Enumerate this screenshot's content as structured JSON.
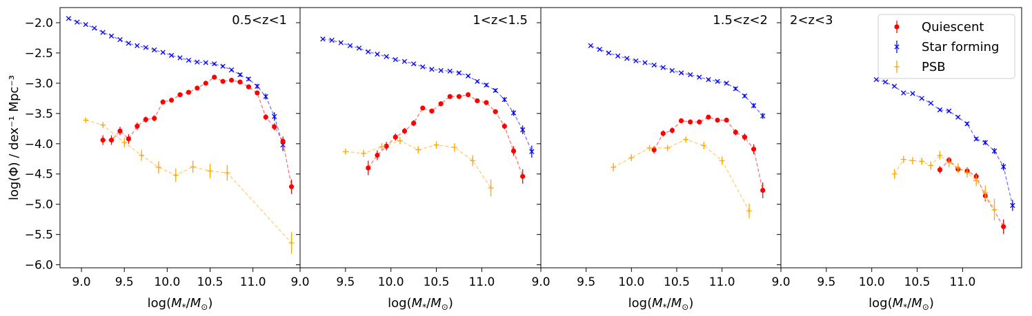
{
  "chart_data": {
    "type": "scatter",
    "ylabel": "log(Φ) / dex⁻¹ Mpc⁻³",
    "xlabel": "log(M*/M⊙)",
    "ylim": [
      -6.05,
      -1.75
    ],
    "yticks": [
      "−2.0",
      "−2.5",
      "−3.0",
      "−3.5",
      "−4.0",
      "−4.5",
      "−5.0",
      "−5.5",
      "−6.0"
    ],
    "ytick_values": [
      -2.0,
      -2.5,
      -3.0,
      -3.5,
      -4.0,
      -4.5,
      -5.0,
      -5.5,
      -6.0
    ],
    "legend": {
      "placement": "top-right",
      "entries": [
        {
          "label": "Quiescent",
          "color": "#ff0000",
          "marker": "circle"
        },
        {
          "label": "Star forming",
          "color": "#0000ff",
          "marker": "x"
        },
        {
          "label": "PSB",
          "color": "#ffa500",
          "marker": "plus"
        }
      ]
    },
    "panels": [
      {
        "title": "0.5<z<1",
        "xlim": [
          8.75,
          11.55
        ],
        "xticks": [
          "9.0",
          "9.5",
          "10.0",
          "10.5",
          "11.0"
        ],
        "xtick_values": [
          9.0,
          9.5,
          10.0,
          10.5,
          11.0
        ],
        "series": [
          {
            "name": "Star forming",
            "color": "#0000ff",
            "marker": "x",
            "x": [
              8.85,
              8.95,
              9.05,
              9.15,
              9.25,
              9.35,
              9.45,
              9.55,
              9.65,
              9.75,
              9.85,
              9.95,
              10.05,
              10.15,
              10.25,
              10.35,
              10.45,
              10.55,
              10.65,
              10.75,
              10.85,
              10.95,
              11.05,
              11.15,
              11.25,
              11.35
            ],
            "y": [
              -1.93,
              -1.99,
              -2.03,
              -2.09,
              -2.16,
              -2.22,
              -2.28,
              -2.34,
              -2.38,
              -2.41,
              -2.45,
              -2.49,
              -2.54,
              -2.58,
              -2.62,
              -2.65,
              -2.66,
              -2.68,
              -2.72,
              -2.78,
              -2.86,
              -2.93,
              -3.05,
              -3.22,
              -3.55,
              -4.02
            ],
            "err": [
              0.01,
              0.01,
              0.01,
              0.01,
              0.01,
              0.01,
              0.01,
              0.01,
              0.01,
              0.01,
              0.01,
              0.01,
              0.01,
              0.01,
              0.01,
              0.01,
              0.01,
              0.02,
              0.02,
              0.02,
              0.03,
              0.03,
              0.04,
              0.05,
              0.07,
              0.1
            ]
          },
          {
            "name": "Quiescent",
            "color": "#ff0000",
            "marker": "circle",
            "x": [
              9.25,
              9.35,
              9.45,
              9.55,
              9.65,
              9.75,
              9.85,
              9.95,
              10.05,
              10.15,
              10.25,
              10.35,
              10.45,
              10.55,
              10.65,
              10.75,
              10.85,
              10.95,
              11.05,
              11.15,
              11.25,
              11.35,
              11.45
            ],
            "y": [
              -3.94,
              -3.94,
              -3.79,
              -3.92,
              -3.71,
              -3.6,
              -3.58,
              -3.31,
              -3.28,
              -3.19,
              -3.15,
              -3.08,
              -3.0,
              -2.9,
              -2.97,
              -2.95,
              -2.98,
              -3.06,
              -3.16,
              -3.56,
              -3.72,
              -3.96,
              -4.71
            ],
            "err": [
              0.08,
              0.08,
              0.07,
              0.08,
              0.06,
              0.05,
              0.05,
              0.04,
              0.04,
              0.03,
              0.03,
              0.03,
              0.03,
              0.03,
              0.03,
              0.03,
              0.03,
              0.03,
              0.04,
              0.05,
              0.06,
              0.08,
              0.12
            ]
          },
          {
            "name": "PSB",
            "color": "#ffa500",
            "marker": "plus",
            "x": [
              9.05,
              9.25,
              9.5,
              9.7,
              9.9,
              10.1,
              10.3,
              10.5,
              10.7,
              11.45
            ],
            "y": [
              -3.61,
              -3.69,
              -3.98,
              -4.19,
              -4.39,
              -4.52,
              -4.38,
              -4.45,
              -4.48,
              -5.64
            ],
            "err": [
              0.04,
              0.05,
              0.08,
              0.09,
              0.1,
              0.11,
              0.1,
              0.12,
              0.13,
              0.18
            ]
          }
        ]
      },
      {
        "title": "1<z<1.5",
        "xlim": [
          9.0,
          11.65
        ],
        "xticks": [
          "9.0",
          "9.5",
          "10.0",
          "10.5",
          "11.0"
        ],
        "xtick_values": [
          9.0,
          9.5,
          10.0,
          10.5,
          11.0
        ],
        "series": [
          {
            "name": "Star forming",
            "color": "#0000ff",
            "marker": "x",
            "x": [
              9.25,
              9.35,
              9.45,
              9.55,
              9.65,
              9.75,
              9.85,
              9.95,
              10.05,
              10.15,
              10.25,
              10.35,
              10.45,
              10.55,
              10.65,
              10.75,
              10.85,
              10.95,
              11.05,
              11.15,
              11.25,
              11.35,
              11.45,
              11.55
            ],
            "y": [
              -2.27,
              -2.29,
              -2.33,
              -2.38,
              -2.42,
              -2.48,
              -2.52,
              -2.56,
              -2.61,
              -2.64,
              -2.68,
              -2.73,
              -2.77,
              -2.79,
              -2.8,
              -2.83,
              -2.88,
              -2.97,
              -3.03,
              -3.12,
              -3.27,
              -3.49,
              -3.77,
              -4.13
            ],
            "err": [
              0.01,
              0.01,
              0.01,
              0.01,
              0.01,
              0.01,
              0.01,
              0.01,
              0.01,
              0.01,
              0.01,
              0.01,
              0.01,
              0.01,
              0.01,
              0.02,
              0.02,
              0.02,
              0.03,
              0.03,
              0.04,
              0.05,
              0.07,
              0.1
            ]
          },
          {
            "name": "Quiescent",
            "color": "#ff0000",
            "marker": "circle",
            "x": [
              9.75,
              9.85,
              9.95,
              10.05,
              10.15,
              10.25,
              10.35,
              10.45,
              10.55,
              10.65,
              10.75,
              10.85,
              10.95,
              11.05,
              11.15,
              11.25,
              11.35,
              11.45
            ],
            "y": [
              -4.4,
              -4.19,
              -4.04,
              -3.89,
              -3.79,
              -3.66,
              -3.41,
              -3.46,
              -3.34,
              -3.22,
              -3.22,
              -3.19,
              -3.29,
              -3.32,
              -3.47,
              -3.71,
              -4.12,
              -4.54
            ],
            "err": [
              0.12,
              0.08,
              0.07,
              0.06,
              0.05,
              0.05,
              0.04,
              0.04,
              0.04,
              0.03,
              0.03,
              0.03,
              0.03,
              0.04,
              0.04,
              0.05,
              0.08,
              0.12
            ]
          },
          {
            "name": "PSB",
            "color": "#ffa500",
            "marker": "plus",
            "x": [
              9.5,
              9.7,
              9.9,
              10.1,
              10.3,
              10.5,
              10.7,
              10.9,
              11.1
            ],
            "y": [
              -4.13,
              -4.16,
              -4.05,
              -3.95,
              -4.1,
              -4.02,
              -4.06,
              -4.28,
              -4.73
            ],
            "err": [
              0.05,
              0.06,
              0.06,
              0.06,
              0.06,
              0.06,
              0.07,
              0.09,
              0.14
            ]
          }
        ]
      },
      {
        "title": "1.5<z<2",
        "xlim": [
          9.0,
          11.65
        ],
        "xticks": [
          "9.0",
          "9.5",
          "10.0",
          "10.5",
          "11.0"
        ],
        "xtick_values": [
          9.0,
          9.5,
          10.0,
          10.5,
          11.0
        ],
        "series": [
          {
            "name": "Star forming",
            "color": "#0000ff",
            "marker": "x",
            "x": [
              9.55,
              9.65,
              9.75,
              9.85,
              9.95,
              10.05,
              10.15,
              10.25,
              10.35,
              10.45,
              10.55,
              10.65,
              10.75,
              10.85,
              10.95,
              11.05,
              11.15,
              11.25,
              11.35,
              11.45
            ],
            "y": [
              -2.38,
              -2.44,
              -2.5,
              -2.55,
              -2.59,
              -2.63,
              -2.66,
              -2.7,
              -2.74,
              -2.79,
              -2.83,
              -2.86,
              -2.9,
              -2.94,
              -2.97,
              -3.0,
              -3.09,
              -3.21,
              -3.37,
              -3.54
            ],
            "err": [
              0.01,
              0.01,
              0.01,
              0.01,
              0.01,
              0.01,
              0.01,
              0.01,
              0.01,
              0.01,
              0.01,
              0.01,
              0.01,
              0.02,
              0.02,
              0.02,
              0.03,
              0.03,
              0.04,
              0.05
            ]
          },
          {
            "name": "Quiescent",
            "color": "#ff0000",
            "marker": "circle",
            "x": [
              10.25,
              10.35,
              10.45,
              10.55,
              10.65,
              10.75,
              10.85,
              10.95,
              11.05,
              11.15,
              11.25,
              11.35,
              11.45
            ],
            "y": [
              -4.1,
              -3.83,
              -3.78,
              -3.62,
              -3.64,
              -3.64,
              -3.56,
              -3.61,
              -3.61,
              -3.81,
              -3.89,
              -4.09,
              -4.77
            ],
            "err": [
              0.06,
              0.05,
              0.05,
              0.04,
              0.04,
              0.04,
              0.04,
              0.04,
              0.04,
              0.05,
              0.06,
              0.08,
              0.13
            ]
          },
          {
            "name": "PSB",
            "color": "#ffa500",
            "marker": "plus",
            "x": [
              9.8,
              10.0,
              10.2,
              10.4,
              10.6,
              10.8,
              11.0,
              11.3
            ],
            "y": [
              -4.39,
              -4.23,
              -4.07,
              -4.07,
              -3.93,
              -4.03,
              -4.28,
              -5.11
            ],
            "err": [
              0.07,
              0.06,
              0.05,
              0.05,
              0.05,
              0.06,
              0.07,
              0.12
            ]
          }
        ]
      },
      {
        "title": "2<z<3",
        "xlim": [
          9.0,
          11.65
        ],
        "xticks": [
          "9.0",
          "9.5",
          "10.0",
          "10.5",
          "11.0"
        ],
        "xtick_values": [
          9.0,
          9.5,
          10.0,
          10.5,
          11.0
        ],
        "series": [
          {
            "name": "Star forming",
            "color": "#0000ff",
            "marker": "x",
            "x": [
              10.05,
              10.15,
              10.25,
              10.35,
              10.45,
              10.55,
              10.65,
              10.75,
              10.85,
              10.95,
              11.05,
              11.15,
              11.25,
              11.35,
              11.45,
              11.55
            ],
            "y": [
              -2.94,
              -2.98,
              -3.05,
              -3.16,
              -3.17,
              -3.25,
              -3.33,
              -3.44,
              -3.46,
              -3.56,
              -3.67,
              -3.92,
              -3.98,
              -4.12,
              -4.38,
              -5.02
            ],
            "err": [
              0.01,
              0.01,
              0.01,
              0.01,
              0.01,
              0.01,
              0.01,
              0.02,
              0.02,
              0.02,
              0.03,
              0.03,
              0.04,
              0.05,
              0.06,
              0.09
            ]
          },
          {
            "name": "Quiescent",
            "color": "#ff0000",
            "marker": "circle",
            "x": [
              10.75,
              10.85,
              10.95,
              11.05,
              11.15,
              11.25,
              11.45
            ],
            "y": [
              -4.43,
              -4.27,
              -4.42,
              -4.45,
              -4.54,
              -4.86,
              -5.37
            ],
            "err": [
              0.06,
              0.05,
              0.06,
              0.06,
              0.06,
              0.09,
              0.12
            ]
          },
          {
            "name": "PSB",
            "color": "#ffa500",
            "marker": "plus",
            "x": [
              10.25,
              10.35,
              10.45,
              10.55,
              10.65,
              10.75,
              10.85,
              10.95,
              11.05,
              11.15,
              11.25,
              11.35
            ],
            "y": [
              -4.5,
              -4.26,
              -4.28,
              -4.29,
              -4.36,
              -4.19,
              -4.31,
              -4.4,
              -4.48,
              -4.61,
              -4.81,
              -5.09
            ],
            "err": [
              0.08,
              0.06,
              0.06,
              0.06,
              0.07,
              0.07,
              0.08,
              0.08,
              0.08,
              0.09,
              0.12,
              0.18
            ]
          }
        ]
      }
    ]
  }
}
